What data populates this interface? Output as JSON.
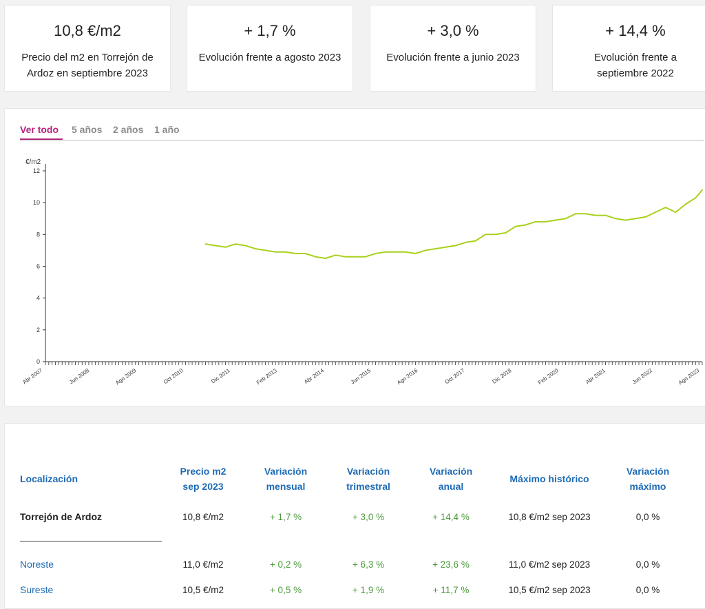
{
  "cards": [
    {
      "value": "10,8 €/m2",
      "label": "Precio del m2 en Torrejón de Ardoz en septiembre 2023"
    },
    {
      "value": "+ 1,7 %",
      "label": "Evolución frente a agosto 2023"
    },
    {
      "value": "+ 3,0 %",
      "label": "Evolución frente a junio 2023"
    },
    {
      "value": "+ 14,4 %",
      "label": "Evolución frente a septiembre 2022"
    }
  ],
  "tabs": [
    "Ver todo",
    "5 años",
    "2 años",
    "1 año"
  ],
  "active_tab": "Ver todo",
  "colors": {
    "accent": "#b5237a",
    "line": "#a8d11c",
    "link": "#1f6bb5",
    "positive": "#4c9a3a"
  },
  "chart_data": {
    "type": "line",
    "ylabel": "€/m2",
    "ylim": [
      0,
      12
    ],
    "yticks": [
      0,
      2,
      4,
      6,
      8,
      10,
      12
    ],
    "x_range": [
      "2007-04",
      "2023-09"
    ],
    "xtick_labels": [
      "Abr 2007",
      "Jun 2008",
      "Ago 2009",
      "Oct 2010",
      "Dic 2011",
      "Feb 2013",
      "Abr 2014",
      "Jun 2015",
      "Ago 2016",
      "Oct 2017",
      "Dic 2018",
      "Feb 2020",
      "Abr 2021",
      "Jun 2022",
      "Ago 2023"
    ],
    "grid": false,
    "series": [
      {
        "x": [
          "2011-04",
          "2011-07",
          "2011-10",
          "2012-01",
          "2012-04",
          "2012-07",
          "2012-10",
          "2013-01",
          "2013-04",
          "2013-07",
          "2013-10",
          "2014-01",
          "2014-04",
          "2014-07",
          "2014-10",
          "2015-01",
          "2015-04",
          "2015-07",
          "2015-10",
          "2016-01",
          "2016-04",
          "2016-07",
          "2016-10",
          "2017-01",
          "2017-04",
          "2017-07",
          "2017-10",
          "2018-01",
          "2018-04",
          "2018-07",
          "2018-10",
          "2019-01",
          "2019-04",
          "2019-07",
          "2019-10",
          "2020-01",
          "2020-04",
          "2020-07",
          "2020-10",
          "2021-01",
          "2021-04",
          "2021-07",
          "2021-10",
          "2022-01",
          "2022-04",
          "2022-07",
          "2022-10",
          "2023-01",
          "2023-04",
          "2023-07",
          "2023-09"
        ],
        "values": [
          7.4,
          7.3,
          7.2,
          7.4,
          7.3,
          7.1,
          7.0,
          6.9,
          6.9,
          6.8,
          6.8,
          6.6,
          6.5,
          6.7,
          6.6,
          6.6,
          6.6,
          6.8,
          6.9,
          6.9,
          6.9,
          6.8,
          7.0,
          7.1,
          7.2,
          7.3,
          7.5,
          7.6,
          8.0,
          8.0,
          8.1,
          8.5,
          8.6,
          8.8,
          8.8,
          8.9,
          9.0,
          9.3,
          9.3,
          9.2,
          9.2,
          9.0,
          8.9,
          9.0,
          9.1,
          9.4,
          9.7,
          9.4,
          9.9,
          10.3,
          10.8
        ]
      }
    ]
  },
  "table": {
    "headers": [
      {
        "line1": "Localización",
        "line2": ""
      },
      {
        "line1": "Precio m2",
        "line2": "sep 2023"
      },
      {
        "line1": "Variación",
        "line2": "mensual"
      },
      {
        "line1": "Variación",
        "line2": "trimestral"
      },
      {
        "line1": "Variación",
        "line2": "anual"
      },
      {
        "line1": "Máximo histórico",
        "line2": ""
      },
      {
        "line1": "Variación",
        "line2": "máximo"
      }
    ],
    "rows": [
      {
        "location": "Torrejón de Ardoz",
        "price": "10,8 €/m2",
        "monthly": "+ 1,7 %",
        "quarterly": "+ 3,0 %",
        "annual": "+ 14,4 %",
        "max": "10,8 €/m2 sep 2023",
        "max_var": "0,0 %"
      },
      {
        "location": "Noreste",
        "price": "11,0 €/m2",
        "monthly": "+ 0,2 %",
        "quarterly": "+ 6,3 %",
        "annual": "+ 23,6 %",
        "max": "11,0 €/m2 sep 2023",
        "max_var": "0,0 %"
      },
      {
        "location": "Sureste",
        "price": "10,5 €/m2",
        "monthly": "+ 0,5 %",
        "quarterly": "+ 1,9 %",
        "annual": "+ 11,7 %",
        "max": "10,5 €/m2 sep 2023",
        "max_var": "0,0 %"
      }
    ]
  }
}
